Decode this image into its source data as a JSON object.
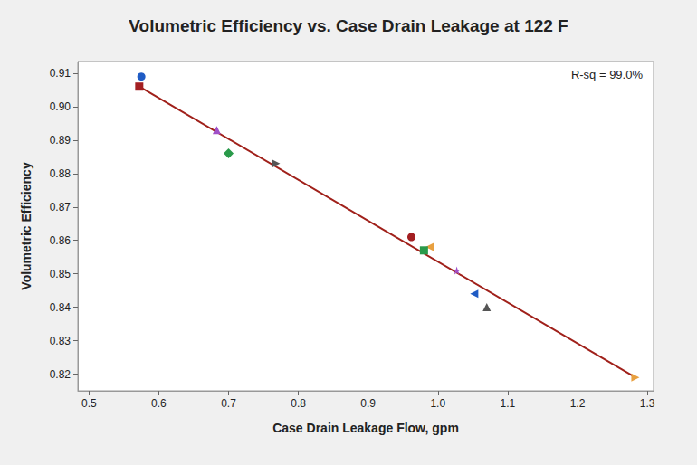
{
  "chart_data": {
    "type": "scatter",
    "title": "Volumetric Efficiency vs. Case Drain Leakage at 122 F",
    "x_label": "Case Drain Leakage Flow, gpm",
    "y_label": "Volumetric Efficiency",
    "annotations": [
      "R-sq = 99.0%"
    ],
    "xlim": [
      0.484,
      1.309
    ],
    "xticks": [
      {
        "value": 0.5,
        "label": "0.5"
      },
      {
        "value": 0.6,
        "label": "0.6"
      },
      {
        "value": 0.7,
        "label": "0.7"
      },
      {
        "value": 0.8,
        "label": "0.8"
      },
      {
        "value": 0.9,
        "label": "0.9"
      },
      {
        "value": 1,
        "label": "1.0"
      },
      {
        "value": 1.1,
        "label": "1.1"
      },
      {
        "value": 1.2,
        "label": "1.2"
      },
      {
        "value": 1.3,
        "label": "1.3"
      }
    ],
    "ylim": [
      0.815,
      0.9135
    ],
    "yticks": [
      0.82,
      0.83,
      0.84,
      0.85,
      0.86,
      0.87,
      0.88,
      0.89,
      {
        "value": 0.9,
        "label": "0.90"
      },
      0.91
    ],
    "grid": false,
    "series": [
      {
        "type": "scatter",
        "color": "#1f5bc4",
        "marker": "circle",
        "x": [
          0.575
        ],
        "values": [
          0.909
        ]
      },
      {
        "type": "scatter",
        "color": "#a31f22",
        "marker": "square",
        "x": [
          0.572
        ],
        "values": [
          0.906
        ]
      },
      {
        "type": "scatter",
        "color": "#a050c8",
        "marker": "triangle-up",
        "x": [
          0.683
        ],
        "values": [
          0.893
        ]
      },
      {
        "type": "scatter",
        "color": "#2a9a4a",
        "marker": "diamond",
        "x": [
          0.7
        ],
        "values": [
          0.886
        ]
      },
      {
        "type": "scatter",
        "color": "#555555",
        "marker": "triangle-right",
        "x": [
          0.768
        ],
        "values": [
          0.883
        ]
      },
      {
        "type": "scatter",
        "color": "#a31f22",
        "marker": "circle",
        "x": [
          0.962
        ],
        "values": [
          0.861
        ]
      },
      {
        "type": "scatter",
        "color": "#e8a040",
        "marker": "triangle-left",
        "x": [
          0.988
        ],
        "values": [
          0.858
        ]
      },
      {
        "type": "scatter",
        "color": "#2a9a4a",
        "marker": "square",
        "x": [
          0.98
        ],
        "values": [
          0.857
        ]
      },
      {
        "type": "scatter",
        "color": "#a050c8",
        "marker": "star",
        "x": [
          1.027
        ],
        "values": [
          0.851
        ]
      },
      {
        "type": "scatter",
        "color": "#1f5bc4",
        "marker": "triangle-left",
        "x": [
          1.052
        ],
        "values": [
          0.844
        ]
      },
      {
        "type": "scatter",
        "color": "#555555",
        "marker": "triangle-up",
        "x": [
          1.07
        ],
        "values": [
          0.84
        ]
      },
      {
        "type": "scatter",
        "color": "#e8a040",
        "marker": "triangle-right",
        "x": [
          1.283
        ],
        "values": [
          0.819
        ]
      },
      {
        "type": "line",
        "color": "#a0201a",
        "line_style": "solid",
        "x": [
          0.572,
          1.283
        ],
        "values": [
          0.906,
          0.819
        ]
      }
    ]
  }
}
